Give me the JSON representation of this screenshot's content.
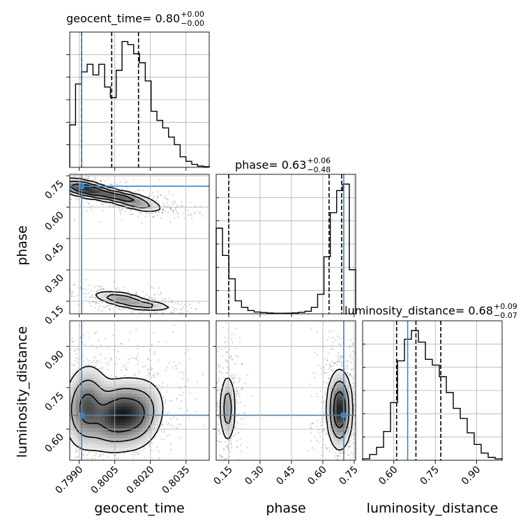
{
  "colors": {
    "truth": "#4682b4",
    "hist": "#000000",
    "grid": "#b0b0b0",
    "scatter": "#7f7f7f"
  },
  "chart_data": {
    "type": "corner",
    "parameters": [
      "geocent_time",
      "phase",
      "luminosity_distance"
    ],
    "titles": [
      {
        "param": "geocent_time",
        "median": "0.80",
        "plus": "+0.00",
        "minus": "−0.00"
      },
      {
        "param": "phase",
        "median": "0.63",
        "plus": "+0.06",
        "minus": "−0.48"
      },
      {
        "param": "luminosity_distance",
        "median": "0.68",
        "plus": "+0.09",
        "minus": "−0.07"
      }
    ],
    "ranges": {
      "geocent_time": [
        0.7986,
        0.80448
      ],
      "phase": [
        0.09,
        0.757
      ],
      "luminosity_distance": [
        0.487,
        0.992
      ]
    },
    "tick_labels": {
      "geocent_time": [
        "0.7990",
        "0.8005",
        "0.8020",
        "0.8035"
      ],
      "phase": [
        "0.15",
        "0.30",
        "0.45",
        "0.60",
        "0.75"
      ],
      "luminosity_distance": [
        "0.60",
        "0.75",
        "0.90"
      ]
    },
    "ticks": {
      "geocent_time": [
        0.799,
        0.8005,
        0.802,
        0.8035
      ],
      "phase": [
        0.15,
        0.3,
        0.45,
        0.6,
        0.75
      ],
      "luminosity_distance": [
        0.6,
        0.75,
        0.9
      ]
    },
    "truths": {
      "geocent_time": 0.7991,
      "phase": 0.7,
      "luminosity_distance": 0.65
    },
    "quantiles": {
      "geocent_time": [
        0.7991,
        0.80037,
        0.8015
      ],
      "phase": [
        0.15,
        0.63,
        0.69
      ],
      "luminosity_distance": [
        0.61,
        0.68,
        0.77
      ]
    },
    "histograms": {
      "geocent_time": {
        "range": [
          0.7986,
          0.80448
        ],
        "counts": [
          0.28,
          0.55,
          0.63,
          0.68,
          0.61,
          0.68,
          0.53,
          0.46,
          0.64,
          0.83,
          0.81,
          0.75,
          0.69,
          0.57,
          0.37,
          0.31,
          0.26,
          0.2,
          0.15,
          0.07,
          0.04,
          0.02,
          0.008,
          0.005
        ]
      },
      "phase": {
        "range": [
          0.09,
          0.757
        ],
        "counts": [
          0.66,
          0.45,
          0.27,
          0.1,
          0.05,
          0.025,
          0.014,
          0.01,
          0.006,
          0.004,
          0.004,
          0.005,
          0.007,
          0.012,
          0.02,
          0.05,
          0.15,
          0.44,
          0.78,
          0.95,
          1.0,
          0.34
        ]
      },
      "luminosity_distance": {
        "range": [
          0.487,
          0.992
        ],
        "counts": [
          0.01,
          0.04,
          0.09,
          0.2,
          0.4,
          0.69,
          0.84,
          0.9,
          0.82,
          0.7,
          0.66,
          0.58,
          0.47,
          0.36,
          0.29,
          0.19,
          0.11,
          0.05,
          0.02,
          0.01
        ]
      }
    },
    "densities_2d": [
      {
        "x": "geocent_time",
        "y": "phase",
        "blobs": [
          {
            "cx": 0.79922,
            "cy": 0.688,
            "sx": 0.00055,
            "sy": 0.022,
            "rho": -0.55,
            "w": 1.0
          },
          {
            "cx": 0.80065,
            "cy": 0.65,
            "sx": 0.0007,
            "sy": 0.02,
            "rho": -0.7,
            "w": 0.8
          },
          {
            "cx": 0.8015,
            "cy": 0.61,
            "sx": 0.0005,
            "sy": 0.016,
            "rho": -0.6,
            "w": 0.35
          },
          {
            "cx": 0.8008,
            "cy": 0.16,
            "sx": 0.00055,
            "sy": 0.018,
            "rho": -0.55,
            "w": 0.55
          },
          {
            "cx": 0.8018,
            "cy": 0.13,
            "sx": 0.00055,
            "sy": 0.012,
            "rho": -0.4,
            "w": 0.35
          }
        ],
        "contour_levels": [
          0.07,
          0.25,
          0.55
        ],
        "scatter_n": 1200
      },
      {
        "x": "geocent_time",
        "y": "luminosity_distance",
        "blobs": [
          {
            "cx": 0.7993,
            "cy": 0.68,
            "sx": 0.00045,
            "sy": 0.07,
            "rho": 0.1,
            "w": 0.8
          },
          {
            "cx": 0.8006,
            "cy": 0.65,
            "sx": 0.0006,
            "sy": 0.06,
            "rho": 0.2,
            "w": 1.0
          },
          {
            "cx": 0.80155,
            "cy": 0.65,
            "sx": 0.0005,
            "sy": 0.06,
            "rho": 0.2,
            "w": 0.55
          }
        ],
        "contour_levels": [
          0.08,
          0.28,
          0.6
        ],
        "scatter_n": 1100
      },
      {
        "x": "phase",
        "y": "luminosity_distance",
        "blobs": [
          {
            "cx": 0.145,
            "cy": 0.675,
            "sx": 0.018,
            "sy": 0.06,
            "rho": 0.0,
            "w": 0.45
          },
          {
            "cx": 0.68,
            "cy": 0.67,
            "sx": 0.028,
            "sy": 0.065,
            "rho": 0.0,
            "w": 1.0
          }
        ],
        "contour_levels": [
          0.08,
          0.28,
          0.6
        ],
        "scatter_n": 1000
      }
    ],
    "xlabels": [
      "geocent_time",
      "phase",
      "luminosity_distance"
    ],
    "ylabels": [
      "",
      "phase",
      "luminosity_distance"
    ]
  }
}
